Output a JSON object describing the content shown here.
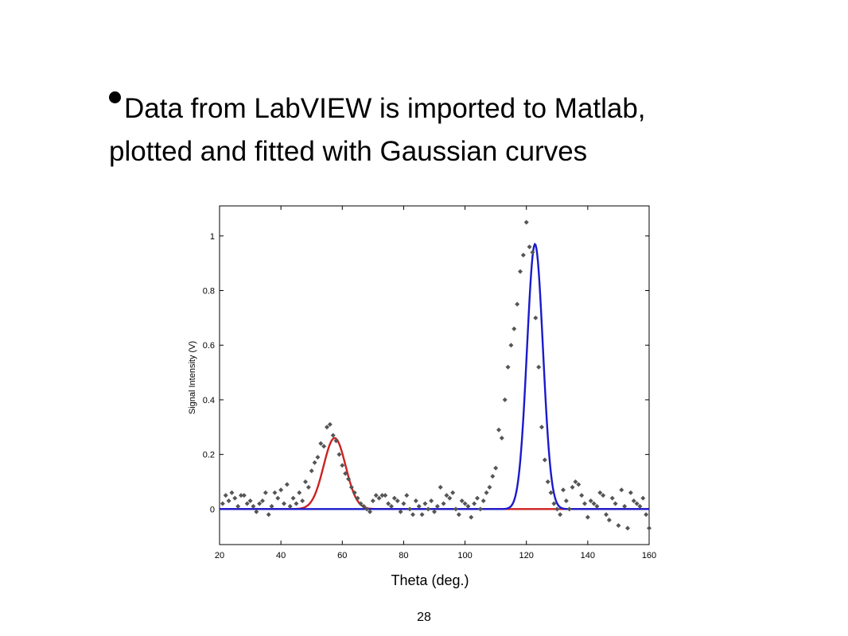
{
  "slide": {
    "bullet_line1": "Data from LabVIEW is imported to Matlab,",
    "bullet_line2": "plotted and fitted with Gaussian curves",
    "page_number": "28"
  },
  "chart_data": {
    "type": "scatter",
    "xlabel": "Theta (deg.)",
    "ylabel": "Signal Intensity (V)",
    "xlim": [
      20,
      160
    ],
    "ylim": [
      -0.13,
      1.11
    ],
    "x_ticks": [
      20,
      40,
      60,
      80,
      100,
      120,
      140,
      160
    ],
    "y_ticks": [
      0,
      0.2,
      0.4,
      0.6,
      0.8,
      1
    ],
    "grid": false,
    "colors": {
      "points": "#555555",
      "fit1": "#cc2222",
      "fit2": "#1a1acc",
      "axes": "#000000"
    },
    "series": [
      {
        "kind": "points",
        "x": [
          21,
          22,
          23,
          24,
          25,
          26,
          27,
          28,
          29,
          30,
          31,
          32,
          33,
          34,
          35,
          36,
          37,
          38,
          39,
          40,
          41,
          42,
          43,
          44,
          45,
          46,
          47,
          48,
          49,
          50,
          51,
          52,
          53,
          54,
          55,
          56,
          57,
          58,
          59,
          60,
          61,
          62,
          63,
          64,
          65,
          66,
          67,
          68,
          69,
          70,
          71,
          72,
          73,
          74,
          75,
          76,
          77,
          78,
          79,
          80,
          81,
          82,
          83,
          84,
          85,
          86,
          87,
          88,
          89,
          90,
          91,
          92,
          93,
          94,
          95,
          96,
          97,
          98,
          99,
          100,
          101,
          102,
          103,
          104,
          105,
          106,
          107,
          108,
          109,
          110,
          111,
          112,
          113,
          114,
          115,
          116,
          117,
          118,
          119,
          120,
          121,
          122,
          123,
          124,
          125,
          126,
          127,
          128,
          129,
          130,
          131,
          132,
          133,
          134,
          135,
          136,
          137,
          138,
          139,
          140,
          141,
          142,
          143,
          144,
          145,
          146,
          147,
          148,
          149,
          150,
          151,
          152,
          153,
          154,
          155,
          156,
          157,
          158,
          159,
          160
        ],
        "y": [
          0.02,
          0.05,
          0.03,
          0.06,
          0.04,
          0.01,
          0.05,
          0.05,
          0.02,
          0.03,
          0.01,
          -0.01,
          0.02,
          0.03,
          0.06,
          -0.02,
          0.01,
          0.06,
          0.04,
          0.07,
          0.02,
          0.09,
          0.01,
          0.04,
          0.02,
          0.06,
          0.03,
          0.1,
          0.08,
          0.14,
          0.17,
          0.19,
          0.24,
          0.23,
          0.3,
          0.31,
          0.27,
          0.25,
          0.2,
          0.16,
          0.13,
          0.11,
          0.08,
          0.06,
          0.04,
          0.02,
          0.01,
          0.0,
          -0.01,
          0.03,
          0.05,
          0.04,
          0.05,
          0.05,
          0.02,
          0.01,
          0.04,
          0.03,
          -0.01,
          0.02,
          0.05,
          0.0,
          -0.02,
          0.03,
          0.01,
          -0.02,
          0.02,
          0.0,
          0.03,
          -0.01,
          0.01,
          0.08,
          0.02,
          0.05,
          0.04,
          0.06,
          0.0,
          -0.02,
          0.03,
          0.02,
          0.01,
          -0.03,
          0.02,
          0.04,
          0.0,
          0.03,
          0.06,
          0.08,
          0.12,
          0.15,
          0.29,
          0.26,
          0.4,
          0.52,
          0.6,
          0.66,
          0.75,
          0.87,
          0.93,
          1.05,
          0.96,
          0.94,
          0.7,
          0.52,
          0.3,
          0.18,
          0.1,
          0.06,
          0.02,
          0.0,
          -0.02,
          0.07,
          0.03,
          0.0,
          0.08,
          0.1,
          0.09,
          0.05,
          0.02,
          -0.03,
          0.03,
          0.02,
          0.01,
          0.06,
          0.05,
          -0.02,
          -0.04,
          0.04,
          0.02,
          -0.06,
          0.07,
          0.01,
          -0.07,
          0.06,
          0.03,
          0.02,
          0.01,
          0.04,
          -0.02,
          -0.07
        ]
      },
      {
        "kind": "fit",
        "name": "",
        "color_key": "fit1",
        "amplitude": 0.26,
        "center": 57.5,
        "sigma": 3.6,
        "x_range": [
          20,
          160
        ]
      },
      {
        "kind": "fit",
        "name": "",
        "color_key": "fit2",
        "amplitude": 0.97,
        "center": 122.8,
        "sigma": 2.6,
        "x_range": [
          20,
          160
        ]
      }
    ]
  }
}
